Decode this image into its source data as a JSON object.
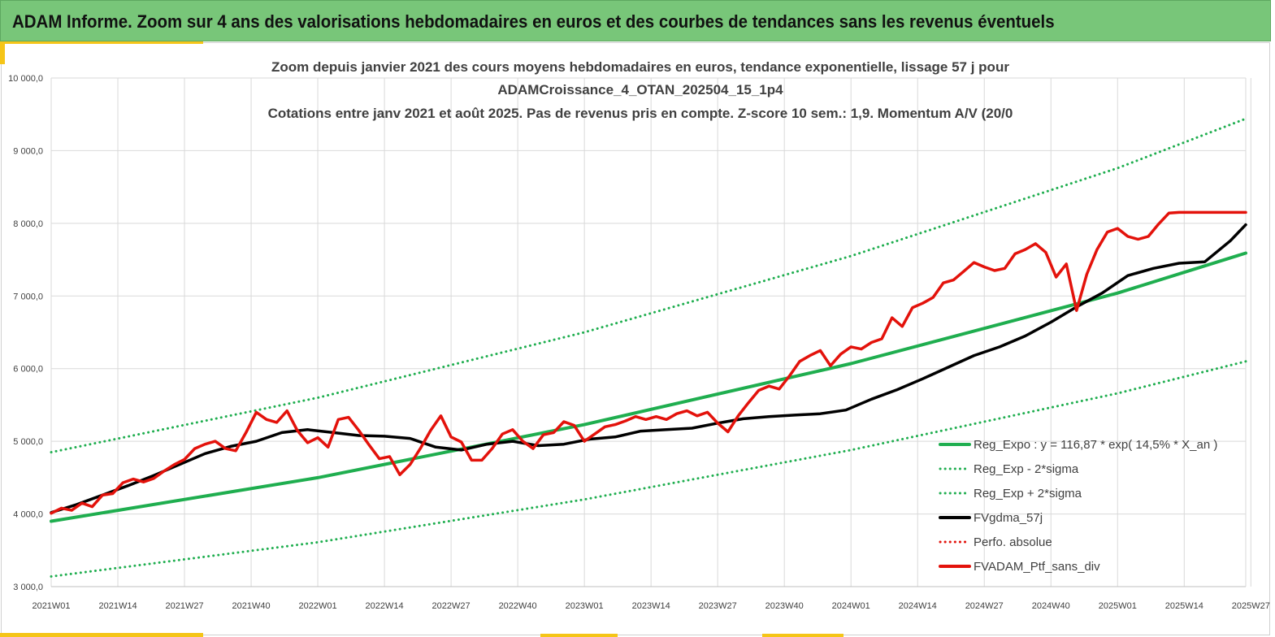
{
  "banner": {
    "title": "ADAM Informe. Zoom sur 4 ans des valorisations hebdomadaires en euros et des courbes de tendances sans les revenus éventuels"
  },
  "colors": {
    "banner_bg": "#78c679",
    "accent": "#f5c518",
    "reg_expo": "#1fae4f",
    "sigma": "#1fae4f",
    "fvgdma": "#000000",
    "perfo": "#e3120b",
    "fvadam": "#e3120b"
  },
  "chart_data": {
    "type": "line",
    "title_lines": [
      "Zoom depuis janvier 2021 des cours moyens hebdomadaires  en euros, tendance exponentielle, lissage 57 j pour",
      "ADAMCroissance_4_OTAN_202504_15_1p4",
      "Cotations entre janv 2021 et août 2025. Pas de revenus pris en compte. Z-score 10 sem.: 1,9. Momentum A/V (20/0"
    ],
    "x_tick_labels": [
      "2021W01",
      "2021W14",
      "2021W27",
      "2021W40",
      "2022W01",
      "2022W14",
      "2022W27",
      "2022W40",
      "2023W01",
      "2023W14",
      "2023W27",
      "2023W40",
      "2024W01",
      "2024W14",
      "2024W27",
      "2024W40",
      "2025W01",
      "2025W14",
      "2025W27"
    ],
    "y_tick_labels": [
      "3 000,0",
      "4 000,0",
      "5 000,0",
      "6 000,0",
      "7 000,0",
      "8 000,0",
      "9 000,0",
      "10 000,0"
    ],
    "ylim": [
      3000,
      10000
    ],
    "x_range_weeks": [
      0,
      233
    ],
    "grid": true,
    "legend_position": "bottom-right",
    "series": [
      {
        "name": "Reg_Expo : y = 116,87 * exp( 14,5% *  X_an )",
        "style": "solid",
        "color": "#1fae4f",
        "x": [
          0,
          52,
          104,
          156,
          208,
          233
        ],
        "y": [
          3900,
          4500,
          5230,
          6070,
          7040,
          7590
        ]
      },
      {
        "name": "Reg_Exp - 2*sigma",
        "style": "dotted",
        "color": "#1fae4f",
        "x": [
          0,
          52,
          104,
          156,
          208,
          233
        ],
        "y": [
          3140,
          3610,
          4200,
          4880,
          5660,
          6100
        ]
      },
      {
        "name": "Reg_Exp + 2*sigma",
        "style": "dotted",
        "color": "#1fae4f",
        "x": [
          0,
          52,
          104,
          156,
          208,
          233
        ],
        "y": [
          4850,
          5600,
          6500,
          7550,
          8760,
          9440
        ]
      },
      {
        "name": "FVgdma_57j",
        "style": "solid",
        "color": "#000000",
        "x": [
          0,
          5,
          10,
          15,
          20,
          25,
          30,
          35,
          40,
          45,
          50,
          55,
          60,
          65,
          70,
          75,
          80,
          85,
          90,
          95,
          100,
          105,
          110,
          115,
          120,
          125,
          130,
          135,
          140,
          145,
          150,
          155,
          160,
          165,
          170,
          175,
          180,
          185,
          190,
          195,
          200,
          205,
          210,
          215,
          220,
          225,
          230,
          233
        ],
        "y": [
          4020,
          4130,
          4260,
          4390,
          4530,
          4680,
          4830,
          4930,
          5000,
          5120,
          5160,
          5120,
          5080,
          5070,
          5040,
          4920,
          4880,
          4960,
          5000,
          4940,
          4960,
          5030,
          5060,
          5140,
          5160,
          5180,
          5250,
          5310,
          5340,
          5360,
          5380,
          5430,
          5580,
          5710,
          5860,
          6020,
          6180,
          6300,
          6450,
          6640,
          6850,
          7040,
          7280,
          7380,
          7450,
          7470,
          7760,
          7980
        ]
      },
      {
        "name": "Perfo. absolue",
        "style": "dotted",
        "color": "#e3120b",
        "x": [],
        "y": []
      },
      {
        "name": "FVADAM_Ptf_sans_div",
        "style": "solid",
        "color": "#e3120b",
        "x": [
          0,
          2,
          4,
          6,
          8,
          10,
          12,
          14,
          16,
          18,
          20,
          22,
          24,
          26,
          28,
          30,
          32,
          34,
          36,
          38,
          40,
          42,
          44,
          46,
          48,
          50,
          52,
          54,
          56,
          58,
          60,
          62,
          64,
          66,
          68,
          70,
          72,
          74,
          76,
          78,
          80,
          82,
          84,
          86,
          88,
          90,
          92,
          94,
          96,
          98,
          100,
          102,
          104,
          106,
          108,
          110,
          112,
          114,
          116,
          118,
          120,
          122,
          124,
          126,
          128,
          130,
          132,
          134,
          136,
          138,
          140,
          142,
          144,
          146,
          148,
          150,
          152,
          154,
          156,
          158,
          160,
          162,
          164,
          166,
          168,
          170,
          172,
          174,
          176,
          178,
          180,
          182,
          184,
          186,
          188,
          190,
          192,
          194,
          196,
          198,
          200,
          202,
          204,
          206,
          208,
          210,
          212,
          214,
          216,
          218,
          220,
          222,
          224,
          226,
          228,
          230,
          233
        ],
        "y": [
          4010,
          4080,
          4050,
          4150,
          4100,
          4260,
          4280,
          4430,
          4480,
          4440,
          4490,
          4590,
          4680,
          4750,
          4900,
          4960,
          5000,
          4900,
          4870,
          5120,
          5400,
          5300,
          5260,
          5420,
          5150,
          4980,
          5050,
          4920,
          5300,
          5330,
          5150,
          4950,
          4760,
          4790,
          4540,
          4680,
          4900,
          5150,
          5350,
          5060,
          4990,
          4740,
          4740,
          4900,
          5100,
          5160,
          5000,
          4900,
          5090,
          5120,
          5270,
          5220,
          5000,
          5100,
          5200,
          5230,
          5280,
          5340,
          5300,
          5340,
          5300,
          5380,
          5420,
          5350,
          5400,
          5250,
          5130,
          5350,
          5530,
          5700,
          5760,
          5720,
          5900,
          6100,
          6180,
          6250,
          6040,
          6200,
          6300,
          6270,
          6360,
          6410,
          6700,
          6580,
          6840,
          6900,
          6980,
          7180,
          7220,
          7340,
          7460,
          7400,
          7350,
          7380,
          7580,
          7640,
          7720,
          7600,
          7260,
          7440,
          6800,
          7300,
          7640,
          7880,
          7930,
          7820,
          7780,
          7820,
          7990,
          8140,
          8150,
          8150,
          8150,
          8150,
          8150,
          8150,
          8150
        ]
      }
    ]
  }
}
